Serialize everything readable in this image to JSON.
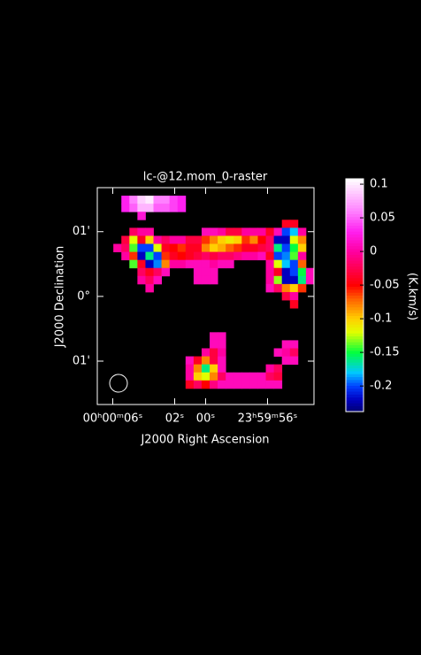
{
  "chart_data": {
    "type": "heatmap",
    "title": "lc-@12.mom_0-raster",
    "x_label": "J2000 Right Ascension",
    "y_label": "J2000 Declination",
    "colorbar_label": "(K.km/s)",
    "xlim": [
      7.0,
      -7.0
    ],
    "xticks": [
      {
        "value": 6,
        "label": "00ʰ00ᵐ06ˢ"
      },
      {
        "value": 2,
        "label": "02ˢ"
      },
      {
        "value": 0,
        "label": "00ˢ"
      },
      {
        "value": -4,
        "label": "23ʰ59ᵐ56ˢ"
      }
    ],
    "ylim": [
      -1.67,
      1.68
    ],
    "yticks": [
      {
        "value": 1,
        "label": "01'"
      },
      {
        "value": 0,
        "label": "0°"
      },
      {
        "value": -1,
        "label": "01'"
      }
    ],
    "zlim": [
      -0.238,
      0.108
    ],
    "zticks": [
      0.1,
      0.05,
      0,
      -0.05,
      -0.1,
      -0.15,
      -0.2
    ],
    "z": [
      [
        null,
        null,
        null,
        null,
        null,
        null,
        null,
        null,
        null,
        null,
        null,
        null,
        null,
        null,
        null,
        null,
        null,
        null,
        null,
        null,
        null,
        null,
        null,
        null,
        null,
        null,
        null
      ],
      [
        null,
        null,
        null,
        0.03,
        0.06,
        0.09,
        0.1,
        0.06,
        0.06,
        0.04,
        0.03,
        null,
        null,
        null,
        null,
        null,
        null,
        null,
        null,
        null,
        null,
        null,
        null,
        null,
        null,
        null,
        null
      ],
      [
        null,
        null,
        null,
        0.03,
        0.05,
        0.08,
        0.08,
        0.05,
        0.05,
        0.04,
        0.03,
        null,
        null,
        null,
        null,
        null,
        null,
        null,
        null,
        null,
        null,
        null,
        null,
        null,
        null,
        null,
        null
      ],
      [
        null,
        null,
        null,
        null,
        null,
        0.02,
        null,
        null,
        null,
        null,
        null,
        null,
        null,
        null,
        null,
        null,
        null,
        null,
        null,
        null,
        null,
        null,
        null,
        null,
        null,
        null,
        null
      ],
      [
        null,
        null,
        null,
        null,
        null,
        null,
        null,
        null,
        null,
        null,
        null,
        null,
        null,
        null,
        null,
        null,
        null,
        null,
        null,
        null,
        null,
        null,
        null,
        -0.04,
        -0.04,
        null,
        null
      ],
      [
        null,
        null,
        null,
        null,
        -0.02,
        0,
        0,
        null,
        null,
        null,
        null,
        null,
        null,
        0.01,
        0.01,
        0,
        -0.03,
        -0.03,
        0,
        0,
        0,
        -0.04,
        0.01,
        -0.2,
        -0.18,
        0,
        null
      ],
      [
        null,
        null,
        null,
        -0.03,
        -0.12,
        -0.04,
        -0.1,
        0,
        -0.02,
        0,
        0,
        -0.03,
        -0.03,
        -0.06,
        -0.08,
        -0.1,
        -0.11,
        -0.1,
        -0.06,
        -0.08,
        -0.05,
        -0.02,
        -0.22,
        -0.22,
        -0.12,
        -0.08,
        null
      ],
      [
        null,
        null,
        0,
        -0.02,
        -0.14,
        -0.2,
        -0.2,
        -0.12,
        -0.04,
        -0.05,
        -0.06,
        -0.04,
        -0.04,
        -0.08,
        -0.1,
        -0.09,
        -0.07,
        -0.06,
        -0.04,
        -0.04,
        -0.03,
        -0.02,
        -0.16,
        -0.2,
        -0.15,
        -0.1,
        null
      ],
      [
        null,
        null,
        null,
        0,
        -0.06,
        -0.22,
        -0.16,
        -0.2,
        -0.06,
        -0.04,
        -0.05,
        -0.04,
        -0.03,
        -0.02,
        -0.03,
        -0.02,
        -0.02,
        -0.01,
        0,
        0,
        0.01,
        -0.04,
        -0.2,
        -0.19,
        -0.14,
        0,
        null
      ],
      [
        null,
        null,
        null,
        null,
        -0.14,
        -0.04,
        -0.22,
        -0.19,
        -0.08,
        0,
        0,
        0.01,
        0.01,
        0.01,
        0,
        0.01,
        0.01,
        null,
        null,
        null,
        null,
        0,
        -0.12,
        -0.18,
        -0.2,
        -0.07,
        null
      ],
      [
        null,
        null,
        null,
        null,
        null,
        -0.02,
        -0.04,
        -0.02,
        0.01,
        null,
        null,
        null,
        0.01,
        0.01,
        0.01,
        null,
        null,
        null,
        null,
        null,
        null,
        0,
        -0.04,
        -0.22,
        -0.2,
        -0.15,
        0.01
      ],
      [
        null,
        null,
        null,
        null,
        null,
        0,
        -0.02,
        0.01,
        null,
        null,
        null,
        null,
        0.01,
        0.01,
        0.01,
        null,
        null,
        null,
        null,
        null,
        null,
        0,
        -0.13,
        -0.22,
        -0.22,
        -0.16,
        0.01
      ],
      [
        null,
        null,
        null,
        null,
        null,
        null,
        0,
        null,
        null,
        null,
        null,
        null,
        null,
        null,
        null,
        null,
        null,
        null,
        null,
        null,
        null,
        0.01,
        -0.02,
        -0.08,
        -0.1,
        -0.06,
        null
      ],
      [
        null,
        null,
        null,
        null,
        null,
        null,
        null,
        null,
        null,
        null,
        null,
        null,
        null,
        null,
        null,
        null,
        null,
        null,
        null,
        null,
        null,
        null,
        null,
        -0.03,
        0,
        null,
        null
      ],
      [
        null,
        null,
        null,
        null,
        null,
        null,
        null,
        null,
        null,
        null,
        null,
        null,
        null,
        null,
        null,
        null,
        null,
        null,
        null,
        null,
        null,
        null,
        null,
        null,
        -0.04,
        null,
        null
      ],
      [
        null,
        null,
        null,
        null,
        null,
        null,
        null,
        null,
        null,
        null,
        null,
        null,
        null,
        null,
        null,
        null,
        null,
        null,
        null,
        null,
        null,
        null,
        null,
        null,
        null,
        null,
        null
      ],
      [
        null,
        null,
        null,
        null,
        null,
        null,
        null,
        null,
        null,
        null,
        null,
        null,
        null,
        null,
        null,
        null,
        null,
        null,
        null,
        null,
        null,
        null,
        null,
        null,
        null,
        null,
        null
      ],
      [
        null,
        null,
        null,
        null,
        null,
        null,
        null,
        null,
        null,
        null,
        null,
        null,
        null,
        null,
        null,
        null,
        null,
        null,
        null,
        null,
        null,
        null,
        null,
        null,
        null,
        null,
        null
      ],
      [
        null,
        null,
        null,
        null,
        null,
        null,
        null,
        null,
        null,
        null,
        null,
        null,
        null,
        null,
        0.01,
        0.01,
        null,
        null,
        null,
        null,
        null,
        null,
        null,
        null,
        null,
        null,
        null
      ],
      [
        null,
        null,
        null,
        null,
        null,
        null,
        null,
        null,
        null,
        null,
        null,
        null,
        null,
        null,
        0.01,
        0.01,
        null,
        null,
        null,
        null,
        null,
        null,
        null,
        0.01,
        0.01,
        null,
        null
      ],
      [
        null,
        null,
        null,
        null,
        null,
        null,
        null,
        null,
        null,
        null,
        null,
        null,
        null,
        0,
        -0.03,
        0,
        null,
        null,
        null,
        null,
        null,
        null,
        0.01,
        0,
        -0.02,
        null,
        null
      ],
      [
        null,
        null,
        null,
        null,
        null,
        null,
        null,
        null,
        null,
        null,
        null,
        0.01,
        -0.04,
        -0.08,
        -0.03,
        0.01,
        null,
        null,
        null,
        null,
        null,
        null,
        null,
        0.01,
        0.01,
        null,
        null
      ],
      [
        null,
        null,
        null,
        null,
        null,
        null,
        null,
        null,
        null,
        null,
        null,
        0,
        -0.08,
        -0.16,
        -0.1,
        0.01,
        null,
        null,
        null,
        null,
        null,
        0,
        -0.02,
        null,
        null,
        null,
        null
      ],
      [
        null,
        null,
        null,
        null,
        null,
        null,
        null,
        null,
        null,
        null,
        null,
        0,
        -0.1,
        -0.12,
        -0.08,
        -0.02,
        0.01,
        0.01,
        0.01,
        0.01,
        0.01,
        -0.02,
        -0.03,
        null,
        null,
        null,
        null
      ],
      [
        null,
        null,
        null,
        null,
        null,
        null,
        null,
        null,
        null,
        null,
        null,
        -0.04,
        -0.02,
        -0.05,
        -0.01,
        0.01,
        0.01,
        0.01,
        0.01,
        0.01,
        0.01,
        0.01,
        0.01,
        null,
        null,
        null,
        null
      ],
      [
        null,
        null,
        null,
        null,
        null,
        null,
        null,
        null,
        null,
        null,
        null,
        null,
        null,
        null,
        null,
        null,
        null,
        null,
        null,
        null,
        null,
        null,
        null,
        null,
        null,
        null,
        null
      ],
      [
        null,
        null,
        null,
        null,
        null,
        null,
        null,
        null,
        null,
        null,
        null,
        null,
        null,
        null,
        null,
        null,
        null,
        null,
        null,
        null,
        null,
        null,
        null,
        null,
        null,
        null,
        null
      ]
    ]
  }
}
